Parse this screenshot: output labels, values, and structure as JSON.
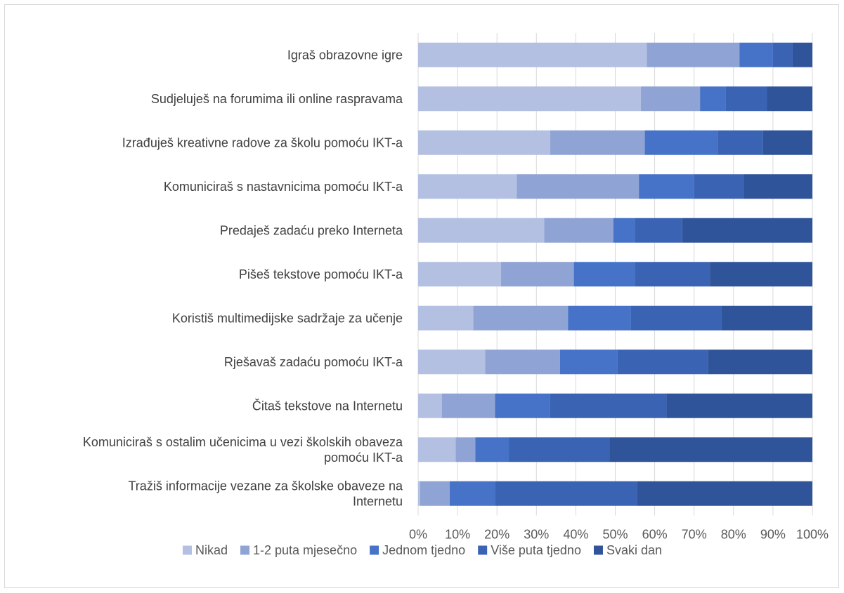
{
  "chart_data": {
    "type": "bar",
    "orientation": "horizontal",
    "stacked": "percent",
    "title": "",
    "xlabel": "",
    "ylabel": "",
    "xlim": [
      0,
      100
    ],
    "grid": true,
    "legend_position": "bottom",
    "categories": [
      [
        "Igraš obrazovne igre"
      ],
      [
        "Sudjeluješ na forumima ili online raspravama"
      ],
      [
        "Izrađuješ kreativne radove za školu pomoću IKT-a"
      ],
      [
        "Komuniciraš s nastavnicima pomoću IKT-a"
      ],
      [
        "Predaješ zadaću preko Interneta"
      ],
      [
        "Pišeš tekstove pomoću IKT-a"
      ],
      [
        "Koristiš multimedijske sadržaje za učenje"
      ],
      [
        "Rješavaš zadaću pomoću IKT-a"
      ],
      [
        "Čitaš tekstove na Internetu"
      ],
      [
        "Komuniciraš s ostalim učenicima u vezi školskih obaveza",
        "pomoću IKT-a"
      ],
      [
        "Tražiš informacije vezane za školske obaveze na",
        "Internetu"
      ]
    ],
    "x_ticks": [
      "0%",
      "10%",
      "20%",
      "30%",
      "40%",
      "50%",
      "60%",
      "70%",
      "80%",
      "90%",
      "100%"
    ],
    "series": [
      {
        "name": "Nikad",
        "color": "#b4c0e2",
        "values": [
          58,
          56.5,
          33.5,
          25,
          32,
          21,
          14,
          17,
          6,
          9.5,
          0.5
        ]
      },
      {
        "name": "1-2 puta mjesečno",
        "color": "#8fa4d4",
        "values": [
          23.5,
          15,
          24,
          31,
          17.5,
          18.5,
          24,
          19,
          13.5,
          5,
          7.5
        ]
      },
      {
        "name": "Jednom tjedno",
        "color": "#4673c8",
        "values": [
          8.5,
          6.5,
          18.5,
          14,
          5.5,
          15.5,
          16,
          14.5,
          14,
          8.5,
          11.5
        ]
      },
      {
        "name": "Više puta tjedno",
        "color": "#3b63b3",
        "values": [
          5,
          10.5,
          11.5,
          12.5,
          12,
          19,
          23,
          23,
          29.5,
          25.5,
          36
        ]
      },
      {
        "name": "Svaki dan",
        "color": "#30549a",
        "values": [
          5,
          11.5,
          12.5,
          17.5,
          33,
          26,
          23,
          26.5,
          37,
          51.5,
          44.5
        ]
      }
    ]
  }
}
